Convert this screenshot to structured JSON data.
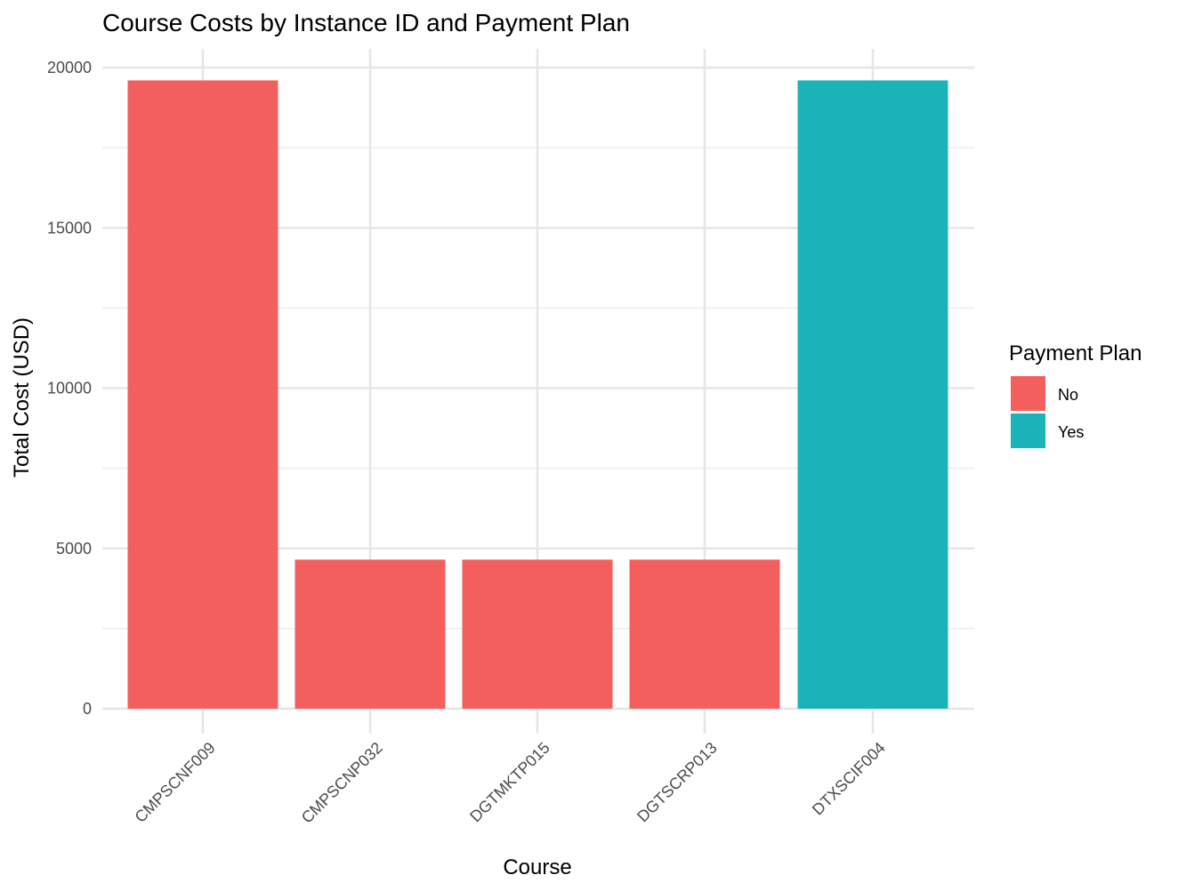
{
  "chart_data": {
    "type": "bar",
    "title": "Course Costs by Instance ID and Payment Plan",
    "xlabel": "Course",
    "ylabel": "Total Cost (USD)",
    "categories": [
      "CMPSCNF009",
      "CMPSCNP032",
      "DGTMKTP015",
      "DGTSCRP013",
      "DTXSCIF004"
    ],
    "values": [
      19600,
      4650,
      4650,
      4650,
      19600
    ],
    "payment_plan": [
      "No",
      "No",
      "No",
      "No",
      "Yes"
    ],
    "ylim": [
      0,
      20500
    ],
    "yticks": [
      0,
      5000,
      10000,
      15000,
      20000
    ],
    "grid": true,
    "legend": {
      "title": "Payment Plan",
      "position": "right",
      "entries": [
        {
          "label": "No",
          "color": "#F35F5C"
        },
        {
          "label": "Yes",
          "color": "#1AB4B8"
        }
      ]
    },
    "colors": {
      "No": "#F35F5C",
      "Yes": "#1AB4B8"
    }
  }
}
